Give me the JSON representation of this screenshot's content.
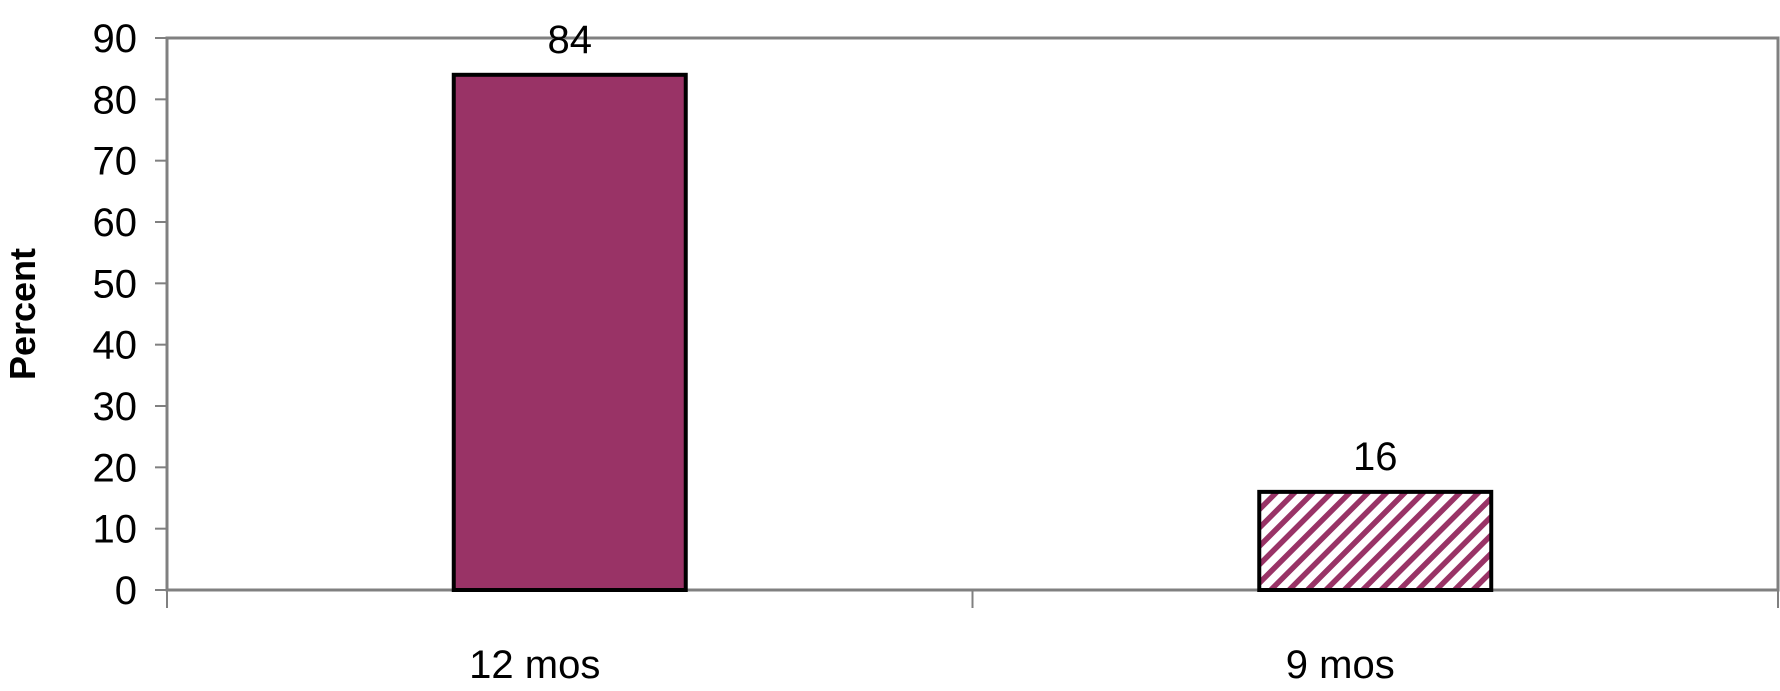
{
  "chart_data": {
    "type": "bar",
    "title": "",
    "xlabel": "",
    "ylabel": "Percent",
    "ylim": [
      0,
      90
    ],
    "yticks": [
      0,
      10,
      20,
      30,
      40,
      50,
      60,
      70,
      80,
      90
    ],
    "grid": false,
    "legend": "none",
    "categories": [
      "12 mos",
      "9 mos"
    ],
    "values": [
      84,
      16
    ],
    "data_labels": [
      "84",
      "16"
    ],
    "bar_styles": [
      "solid",
      "diagonal-hatch"
    ],
    "colors": {
      "bar": "#993366",
      "outline": "#000000",
      "axis": "#808080",
      "background": "#ffffff"
    }
  }
}
